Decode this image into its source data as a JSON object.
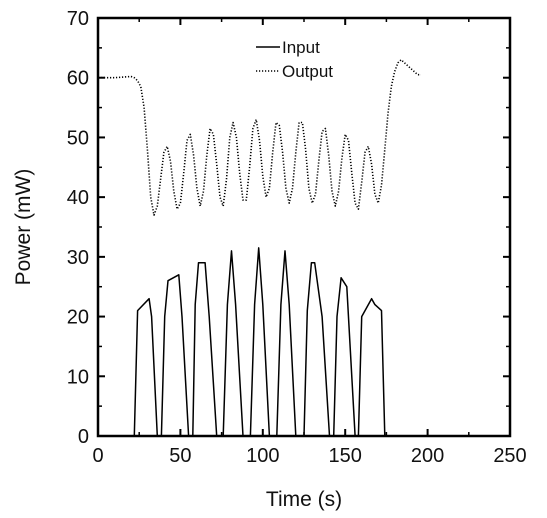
{
  "chart_data": {
    "type": "line",
    "title": "",
    "xlabel": "Time (s)",
    "ylabel": "Power (mW)",
    "xlim": [
      0,
      250
    ],
    "ylim": [
      0,
      70
    ],
    "xticks": [
      0,
      50,
      100,
      150,
      200,
      250
    ],
    "yticks": [
      0,
      10,
      20,
      30,
      40,
      50,
      60,
      70
    ],
    "grid": false,
    "legend_position": "top-center",
    "series": [
      {
        "name": "Input",
        "style": "solid",
        "color": "#000000",
        "x": [
          0,
          22,
          24,
          31,
          32.5,
          36,
          38.5,
          40.5,
          42.5,
          49,
          51,
          55,
          57.5,
          59,
          61,
          65,
          67.5,
          72,
          76,
          78.5,
          81,
          83.5,
          88,
          92.5,
          95,
          97.5,
          100,
          104,
          108.5,
          111,
          113.5,
          116,
          120,
          125,
          127,
          129.5,
          131.5,
          136,
          140.5,
          143,
          145,
          147.5,
          151,
          156,
          158,
          160,
          166,
          168,
          172,
          174,
          195
        ],
        "y": [
          0,
          0,
          21,
          23,
          20,
          0,
          0,
          20,
          26,
          27,
          20,
          0,
          0,
          22,
          29,
          29,
          20,
          0,
          0,
          22,
          31,
          22,
          0,
          0,
          22,
          31.5,
          22,
          0,
          0,
          22,
          31,
          22,
          0,
          0,
          21,
          29,
          29,
          20,
          0,
          0,
          20,
          26.5,
          25,
          0,
          0,
          20,
          23,
          22,
          21,
          0,
          0
        ]
      },
      {
        "name": "Output",
        "style": "dotted",
        "color": "#000000",
        "x": [
          0,
          10,
          20,
          22,
          24,
          26,
          28,
          30,
          32,
          34,
          36,
          38,
          40,
          42,
          44,
          46,
          48,
          50,
          52,
          54,
          56,
          58,
          60,
          62,
          64,
          66,
          68,
          70,
          72,
          74,
          76,
          78,
          80,
          82,
          84,
          86,
          88,
          90,
          92,
          94,
          96,
          98,
          100,
          102,
          104,
          106,
          108,
          110,
          112,
          114,
          116,
          118,
          120,
          122,
          124,
          126,
          128,
          130,
          132,
          134,
          136,
          138,
          140,
          142,
          144,
          146,
          148,
          150,
          152,
          154,
          156,
          158,
          160,
          162,
          164,
          166,
          168,
          170,
          172,
          174,
          176,
          178,
          180,
          182,
          184,
          186,
          188,
          190,
          192,
          194,
          196
        ],
        "y": [
          60,
          60,
          60.2,
          60,
          59.5,
          58.5,
          55,
          48,
          40,
          37,
          38.5,
          43,
          47.5,
          48.5,
          46,
          41,
          38,
          39,
          44,
          49.5,
          50.5,
          47,
          41.5,
          38.5,
          41,
          47,
          51.5,
          50.5,
          45.5,
          40,
          38.5,
          43,
          50,
          52.5,
          50,
          44,
          39.5,
          39.5,
          45,
          51.5,
          53,
          49.5,
          43.5,
          40,
          41.5,
          47.5,
          52.5,
          52,
          47.5,
          41.5,
          39,
          41.5,
          47.5,
          52.5,
          52.5,
          48,
          41.5,
          39,
          40.5,
          46,
          51,
          51.5,
          47,
          41,
          38.5,
          41,
          46.5,
          50.5,
          49.5,
          44,
          39,
          38,
          42.5,
          47.5,
          48.5,
          45.5,
          40.5,
          39,
          42,
          48,
          54,
          58.5,
          61,
          62.5,
          63,
          62.5,
          62,
          61.5,
          61,
          60.5,
          60.5
        ]
      }
    ]
  }
}
